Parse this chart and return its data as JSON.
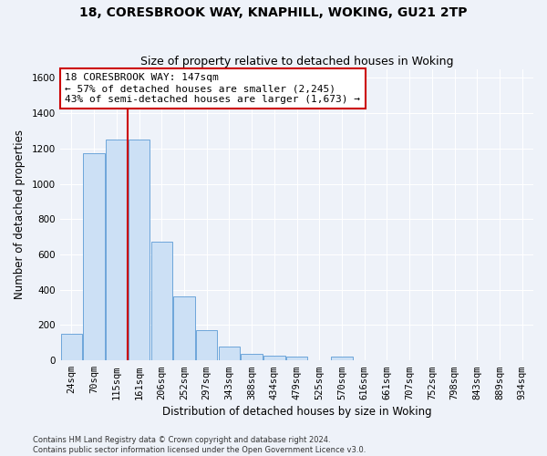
{
  "title1": "18, CORESBROOK WAY, KNAPHILL, WOKING, GU21 2TP",
  "title2": "Size of property relative to detached houses in Woking",
  "xlabel": "Distribution of detached houses by size in Woking",
  "ylabel": "Number of detached properties",
  "footer": "Contains HM Land Registry data © Crown copyright and database right 2024.\nContains public sector information licensed under the Open Government Licence v3.0.",
  "categories": [
    "24sqm",
    "70sqm",
    "115sqm",
    "161sqm",
    "206sqm",
    "252sqm",
    "297sqm",
    "343sqm",
    "388sqm",
    "434sqm",
    "479sqm",
    "525sqm",
    "570sqm",
    "616sqm",
    "661sqm",
    "707sqm",
    "752sqm",
    "798sqm",
    "843sqm",
    "889sqm",
    "934sqm"
  ],
  "values": [
    150,
    1175,
    1250,
    1250,
    670,
    360,
    170,
    80,
    35,
    25,
    20,
    0,
    20,
    0,
    0,
    0,
    0,
    0,
    0,
    0,
    0
  ],
  "bar_color": "#cce0f5",
  "bar_edge_color": "#5b9bd5",
  "vline_color": "#cc0000",
  "annotation_text": "18 CORESBROOK WAY: 147sqm\n← 57% of detached houses are smaller (2,245)\n43% of semi-detached houses are larger (1,673) →",
  "annotation_box_color": "#ffffff",
  "annotation_box_edge": "#cc0000",
  "ylim": [
    0,
    1650
  ],
  "yticks": [
    0,
    200,
    400,
    600,
    800,
    1000,
    1200,
    1400,
    1600
  ],
  "bg_color": "#eef2f9",
  "grid_color": "#ffffff",
  "title1_fontsize": 10,
  "title2_fontsize": 9,
  "annotation_fontsize": 8,
  "xlabel_fontsize": 8.5,
  "ylabel_fontsize": 8.5,
  "tick_fontsize": 7.5,
  "footer_fontsize": 6
}
